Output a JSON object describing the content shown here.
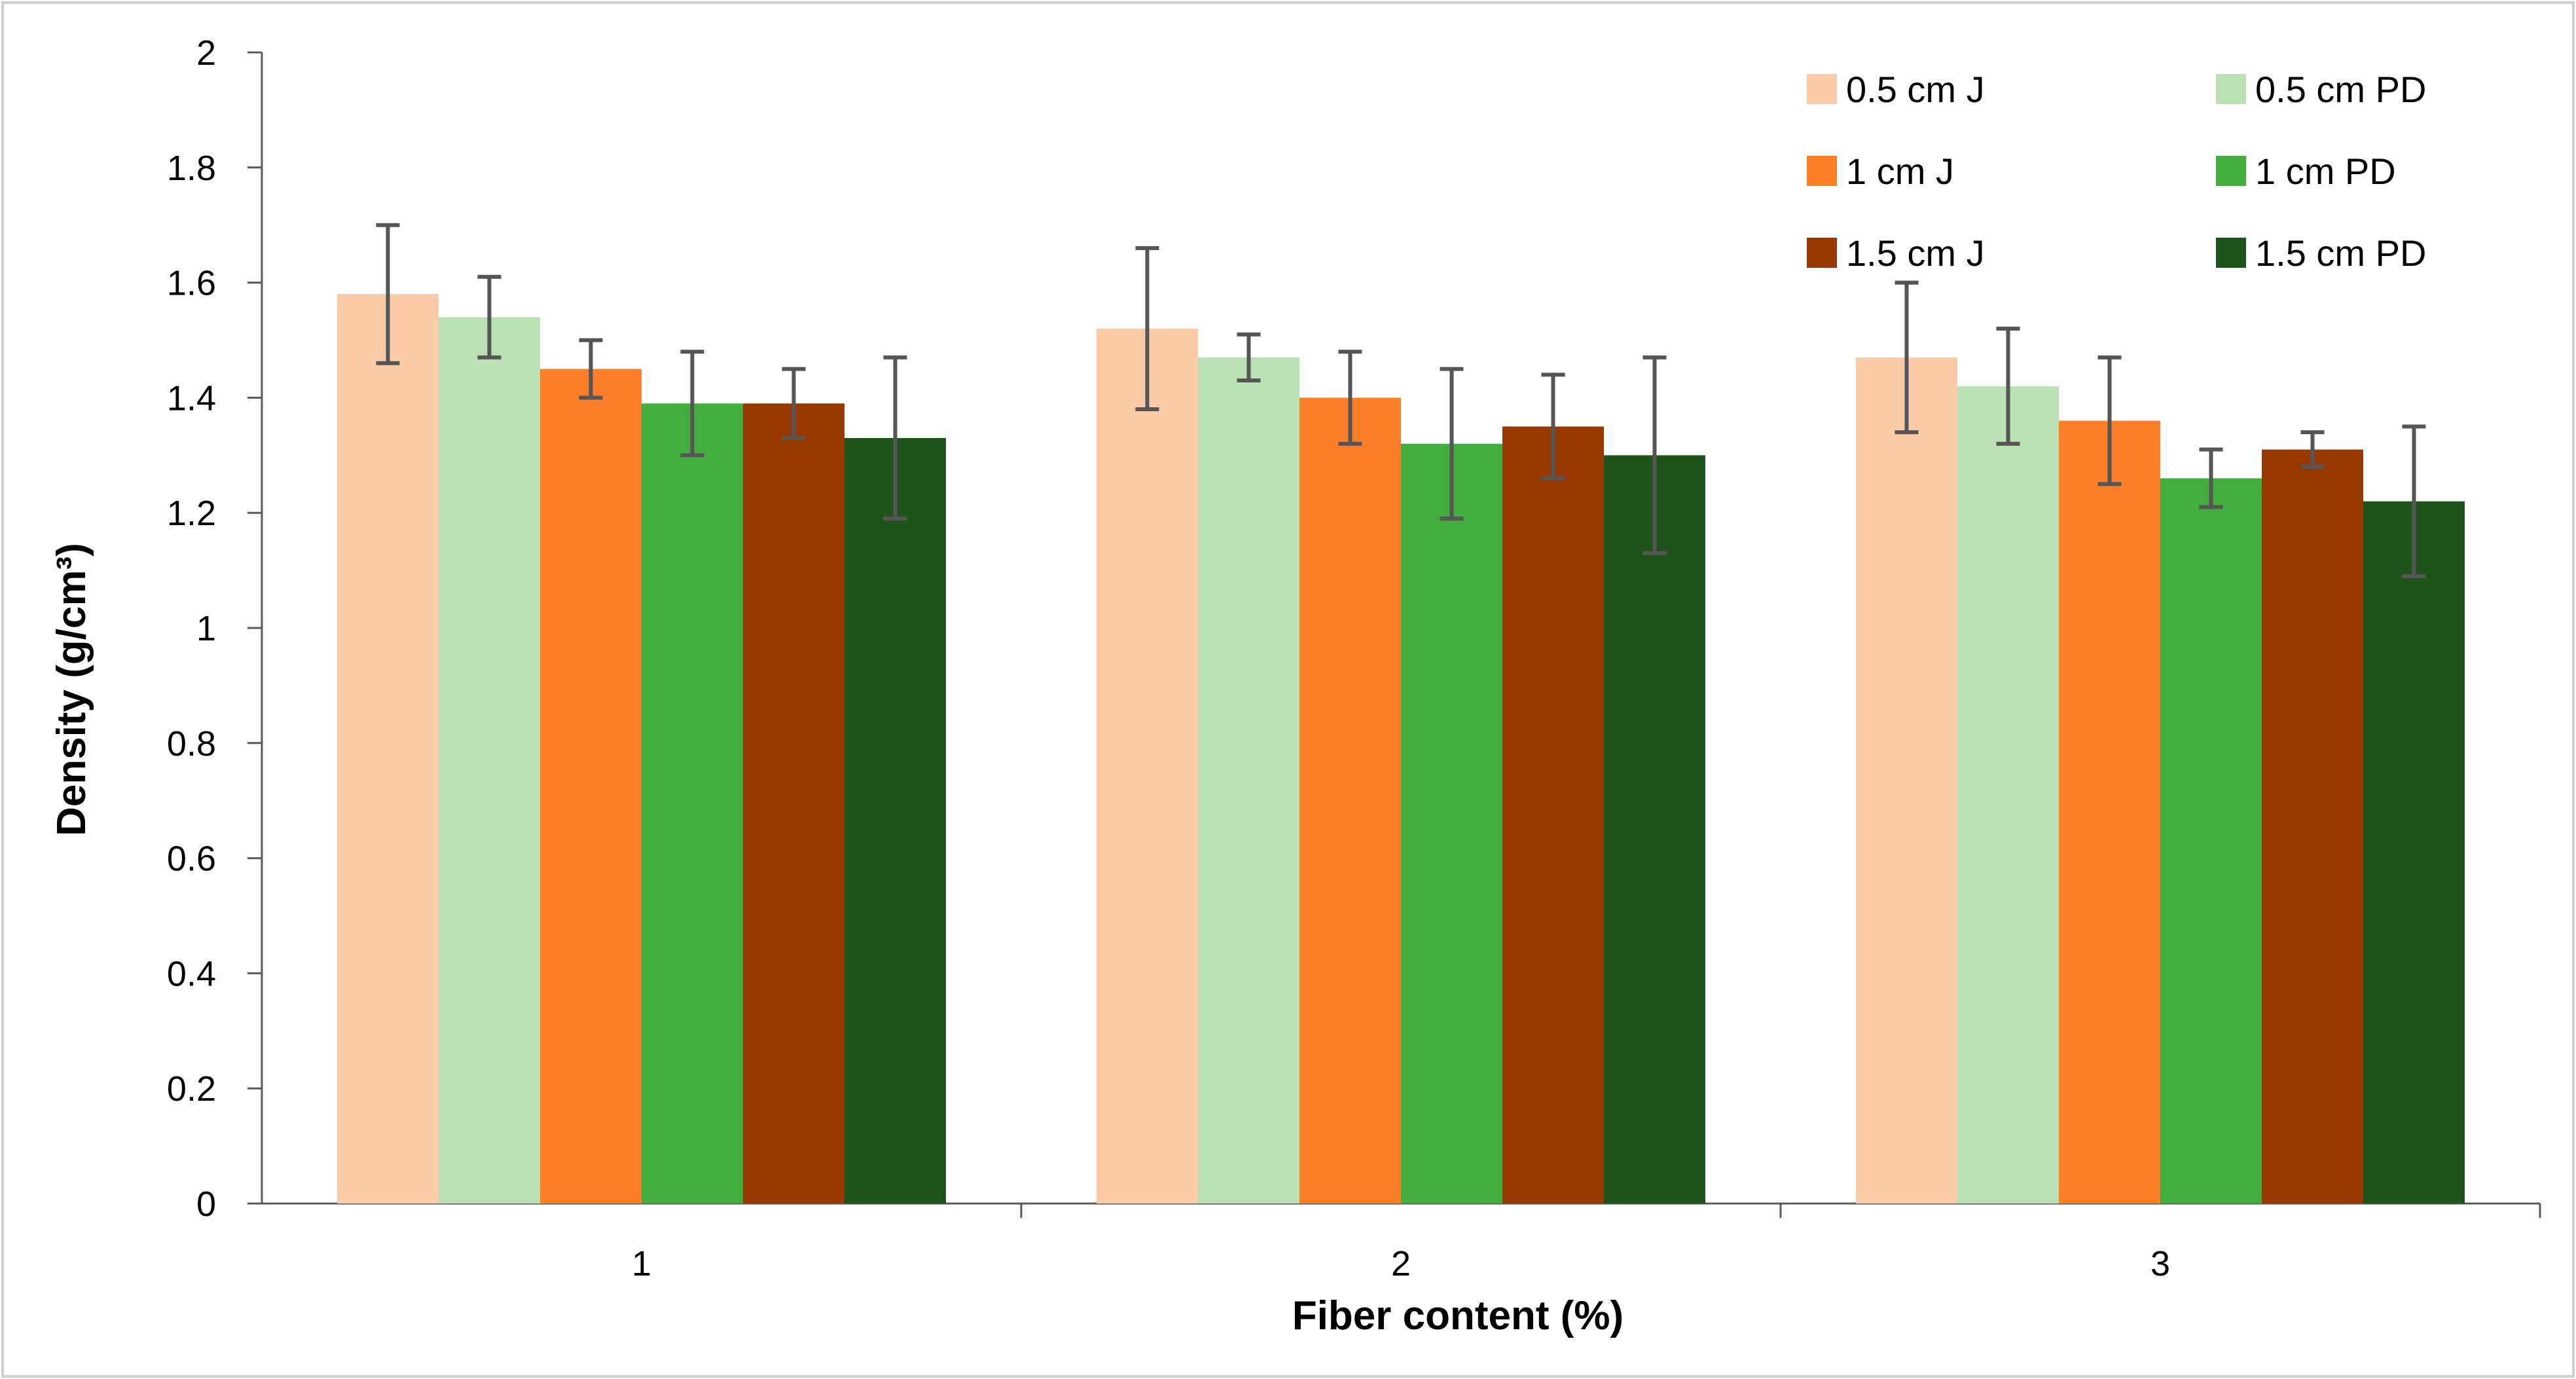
{
  "chart_data": {
    "type": "bar",
    "title": "",
    "xlabel": "Fiber content (%)",
    "ylabel": "Density (g/cm³)",
    "ylim": [
      0,
      2
    ],
    "yticks": [
      "0",
      "0.2",
      "0.4",
      "0.6",
      "0.8",
      "1",
      "1.2",
      "1.4",
      "1.6",
      "1.8",
      "2"
    ],
    "categories": [
      "1",
      "2",
      "3"
    ],
    "grid": false,
    "legend_position": "top-right",
    "series": [
      {
        "name": "0.5 cm J",
        "color": "#FCCBA8",
        "values": [
          1.58,
          1.52,
          1.47
        ],
        "errors": [
          0.12,
          0.14,
          0.13
        ]
      },
      {
        "name": "0.5 cm PD",
        "color": "#BBE0B3",
        "values": [
          1.54,
          1.47,
          1.42
        ],
        "errors": [
          0.07,
          0.04,
          0.1
        ]
      },
      {
        "name": "1 cm J",
        "color": "#FE7F2A",
        "values": [
          1.45,
          1.4,
          1.36
        ],
        "errors": [
          0.05,
          0.08,
          0.11
        ]
      },
      {
        "name": "1 cm PD",
        "color": "#43AE3E",
        "values": [
          1.39,
          1.32,
          1.26
        ],
        "errors": [
          0.09,
          0.13,
          0.05
        ]
      },
      {
        "name": "1.5 cm J",
        "color": "#983802",
        "values": [
          1.39,
          1.35,
          1.31
        ],
        "errors": [
          0.06,
          0.09,
          0.03
        ]
      },
      {
        "name": "1.5 cm PD",
        "color": "#1E5319",
        "values": [
          1.33,
          1.3,
          1.22
        ],
        "errors": [
          0.14,
          0.17,
          0.13
        ]
      }
    ],
    "error_bar_color": "#555555"
  }
}
